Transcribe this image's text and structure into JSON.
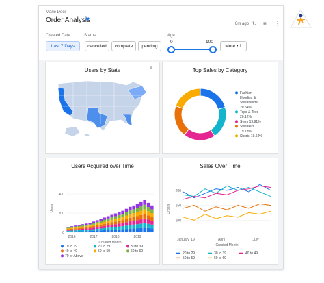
{
  "header": {
    "breadcrumb": "Marie Docs",
    "title": "Order Analysis",
    "updated": "8m ago"
  },
  "filters": {
    "created_date": {
      "label": "Created Date",
      "value": "Last 7 Days"
    },
    "status": {
      "label": "Status",
      "options": [
        "cancelled",
        "complete",
        "pending"
      ]
    },
    "age": {
      "label": "Age",
      "min": "0",
      "max": "100"
    },
    "more": "More • 1"
  },
  "colors": {
    "accent": "#1a73e8",
    "map_dark": "#1a73e8",
    "map_mid": "#7baaf7",
    "map_light": "#c6d4ea"
  },
  "map": {
    "title": "Users by State"
  },
  "chart_data": [
    {
      "type": "pie",
      "title": "Top Sales by Category",
      "slices": [
        {
          "label": "Fashion Hoodies & Sweatshirts",
          "value": 20.54,
          "pct": "20.54%",
          "color": "#1a73e8"
        },
        {
          "label": "Tops & Tees",
          "value": 20.12,
          "pct": "20.12%",
          "color": "#12b5cb"
        },
        {
          "label": "Swim",
          "value": 19.91,
          "pct": "19.91%",
          "color": "#e52592"
        },
        {
          "label": "Sweaters",
          "value": 19.73,
          "pct": "19.73%",
          "color": "#e8710a"
        },
        {
          "label": "Shorts",
          "value": 19.69,
          "pct": "19.69%",
          "color": "#f9ab00"
        }
      ],
      "legend_lines": [
        {
          "text": "Fashion",
          "swatch": true,
          "color": "#1a73e8"
        },
        {
          "text": "Hoodies &",
          "swatch": false
        },
        {
          "text": "Sweatshirts",
          "swatch": false
        },
        {
          "text": "20.54%",
          "swatch": false
        },
        {
          "text": "Tops & Tees",
          "swatch": true,
          "color": "#12b5cb"
        },
        {
          "text": "20.12%",
          "swatch": false
        },
        {
          "text": "Swim 19.91%",
          "swatch": true,
          "color": "#e52592"
        },
        {
          "text": "Sweaters",
          "swatch": true,
          "color": "#e8710a"
        },
        {
          "text": "19.73%",
          "swatch": false
        },
        {
          "text": "Shorts 19.69%",
          "swatch": true,
          "color": "#f9ab00"
        }
      ]
    },
    {
      "type": "bar",
      "stacked": true,
      "title": "Users Acquired over Time",
      "xlabel": "Created Month",
      "ylabel": "Users",
      "ylim": [
        0,
        500
      ],
      "yticks": [
        0,
        200,
        400
      ],
      "xticks": [
        "2016",
        "2017",
        "2018",
        "2019"
      ],
      "categories": [
        "2016-01",
        "2016-03",
        "2016-05",
        "2016-07",
        "2016-09",
        "2016-11",
        "2017-01",
        "2017-03",
        "2017-05",
        "2017-07",
        "2017-09",
        "2017-11",
        "2018-01",
        "2018-03",
        "2018-05",
        "2018-07",
        "2018-09",
        "2018-11",
        "2019-01",
        "2019-03",
        "2019-05",
        "2019-07",
        "2019-09",
        "2019-11"
      ],
      "series": [
        {
          "name": "10 to 19",
          "color": "#1a73e8",
          "values": [
            8,
            9,
            10,
            11,
            12,
            13,
            14,
            16,
            18,
            20,
            22,
            24,
            26,
            28,
            30,
            32,
            35,
            38,
            40,
            42,
            45,
            48,
            44,
            40
          ]
        },
        {
          "name": "20 to 29",
          "color": "#12b5cb",
          "values": [
            8,
            9,
            10,
            11,
            12,
            13,
            14,
            16,
            18,
            20,
            22,
            24,
            26,
            28,
            30,
            32,
            35,
            38,
            40,
            42,
            45,
            48,
            44,
            40
          ]
        },
        {
          "name": "30 to 39",
          "color": "#e52592",
          "values": [
            8,
            9,
            10,
            11,
            12,
            13,
            14,
            16,
            18,
            20,
            22,
            24,
            26,
            28,
            30,
            32,
            35,
            38,
            40,
            42,
            45,
            48,
            44,
            40
          ]
        },
        {
          "name": "40 to 49",
          "color": "#e8710a",
          "values": [
            8,
            9,
            10,
            11,
            12,
            13,
            14,
            16,
            18,
            20,
            22,
            24,
            26,
            28,
            30,
            32,
            35,
            38,
            40,
            42,
            45,
            48,
            44,
            40
          ]
        },
        {
          "name": "50 to 59",
          "color": "#f9ab00",
          "values": [
            8,
            9,
            10,
            11,
            12,
            13,
            14,
            16,
            18,
            20,
            22,
            24,
            26,
            28,
            30,
            32,
            35,
            38,
            40,
            42,
            45,
            48,
            44,
            40
          ]
        },
        {
          "name": "60 to 69",
          "color": "#7cb342",
          "values": [
            8,
            9,
            10,
            11,
            12,
            13,
            14,
            16,
            18,
            20,
            22,
            24,
            26,
            28,
            30,
            32,
            35,
            38,
            40,
            42,
            45,
            48,
            44,
            40
          ]
        },
        {
          "name": "70 or Above",
          "color": "#9334e6",
          "values": [
            8,
            9,
            10,
            11,
            12,
            13,
            14,
            16,
            18,
            20,
            22,
            24,
            26,
            28,
            30,
            32,
            35,
            38,
            40,
            42,
            45,
            48,
            44,
            40
          ]
        }
      ]
    },
    {
      "type": "line",
      "title": "Sales Over Time",
      "xlabel": "Created Month",
      "ylabel": "Orders",
      "ylim": [
        50,
        225
      ],
      "yticks": [
        100,
        150,
        200
      ],
      "xticks": [
        "January '19",
        "April",
        "July"
      ],
      "categories": [
        "Jan",
        "Feb",
        "Mar",
        "Apr",
        "May",
        "Jun",
        "Jul",
        "Aug",
        "Sep"
      ],
      "series": [
        {
          "name": "20 to 29",
          "color": "#1a73e8",
          "values": [
            195,
            175,
            190,
            205,
            200,
            210,
            195,
            220,
            200
          ]
        },
        {
          "name": "30 to 39",
          "color": "#12b5cb",
          "values": [
            185,
            180,
            205,
            190,
            215,
            200,
            210,
            195,
            180
          ]
        },
        {
          "name": "40 to 49",
          "color": "#e52592",
          "values": [
            170,
            180,
            175,
            190,
            185,
            200,
            205,
            215,
            210
          ]
        },
        {
          "name": "50 to 59",
          "color": "#e8710a",
          "values": [
            140,
            150,
            130,
            145,
            135,
            150,
            140,
            155,
            150
          ]
        },
        {
          "name": "60 to 69",
          "color": "#f9ab00",
          "values": [
            110,
            100,
            120,
            105,
            115,
            110,
            125,
            120,
            130
          ]
        }
      ]
    }
  ]
}
